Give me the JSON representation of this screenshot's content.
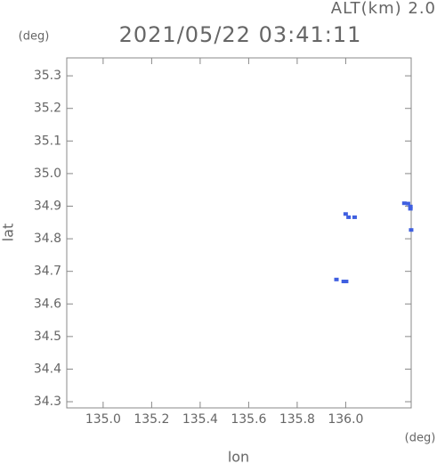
{
  "chart_data": {
    "type": "scatter",
    "title": "2021/05/22 03:41:11",
    "subtitle": "ALT(km) 2.0",
    "y_unit": "(deg)",
    "x_unit": "(deg)",
    "xlabel": "lon",
    "ylabel": "lat",
    "xlim": [
      134.85,
      136.27
    ],
    "ylim": [
      34.281,
      35.355
    ],
    "xticks": [
      {
        "value": 135.0,
        "label": "135.0"
      },
      135.2,
      135.4,
      135.6,
      135.8,
      {
        "value": 136.0,
        "label": "136.0"
      }
    ],
    "yticks": [
      35.3,
      35.2,
      35.1,
      {
        "value": 35.0,
        "label": "35.0"
      },
      34.9,
      34.8,
      34.7,
      34.6,
      34.5,
      34.4,
      34.3
    ],
    "x": [
      135.998,
      136.01,
      136.035,
      136.24,
      136.255,
      136.265,
      136.265,
      136.268,
      135.96,
      135.99,
      136.0
    ],
    "values": [
      34.876,
      34.866,
      34.866,
      34.909,
      34.908,
      34.899,
      34.892,
      34.827,
      34.675,
      34.669,
      34.669
    ],
    "color": "#3f5fe0"
  }
}
